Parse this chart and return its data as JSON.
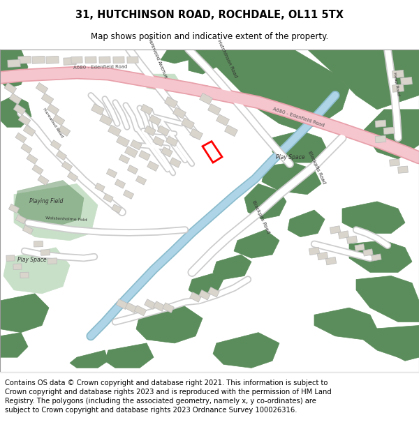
{
  "title_line1": "31, HUTCHINSON ROAD, ROCHDALE, OL11 5TX",
  "title_line2": "Map shows position and indicative extent of the property.",
  "footer_text": "Contains OS data © Crown copyright and database right 2021. This information is subject to Crown copyright and database rights 2023 and is reproduced with the permission of HM Land Registry. The polygons (including the associated geometry, namely x, y co-ordinates) are subject to Crown copyright and database rights 2023 Ordnance Survey 100026316.",
  "map_bg": "#f8f8f8",
  "green_dark": "#5b8c5b",
  "green_light": "#c8dfc8",
  "blue_water": "#aed4e8",
  "building_fill": "#d9d4cc",
  "building_outline": "#bbbbbb",
  "road_fill": "#ffffff",
  "road_outline": "#cccccc",
  "pink_road": "#f5c6ce",
  "pink_road_outline": "#e8a0aa",
  "red_plot": "#ff0000",
  "title_fontsize": 10.5,
  "subtitle_fontsize": 8.5,
  "footer_fontsize": 7.2,
  "map_text_color": "#333333",
  "map_text_size": 5.5
}
